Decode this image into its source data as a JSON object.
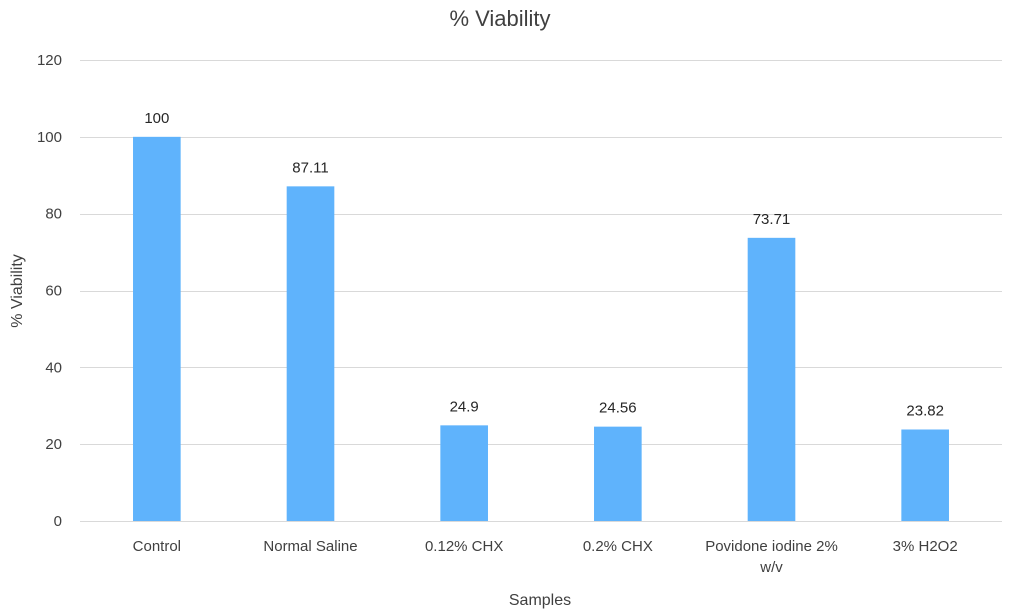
{
  "chart_data": {
    "type": "bar",
    "title": "% Viability",
    "xlabel": "Samples",
    "ylabel": "% Viability",
    "categories": [
      "Control",
      "Normal Saline",
      "0.12% CHX",
      "0.2% CHX",
      "Povidone iodine 2% w/v",
      "3% H2O2"
    ],
    "category_label_lines": [
      [
        "Control"
      ],
      [
        "Normal Saline"
      ],
      [
        "0.12% CHX"
      ],
      [
        "0.2% CHX"
      ],
      [
        "Povidone iodine 2%",
        "w/v"
      ],
      [
        "3% H2O2"
      ]
    ],
    "values": [
      100,
      87.11,
      24.9,
      24.56,
      73.71,
      23.82
    ],
    "data_labels": [
      "100",
      "87.11",
      "24.9",
      "24.56",
      "73.71",
      "23.82"
    ],
    "ylim": [
      0,
      120
    ],
    "yticks": [
      0,
      20,
      40,
      60,
      80,
      100,
      120
    ],
    "grid": true,
    "legend": "none",
    "bar_color": "#5fb3fc"
  }
}
